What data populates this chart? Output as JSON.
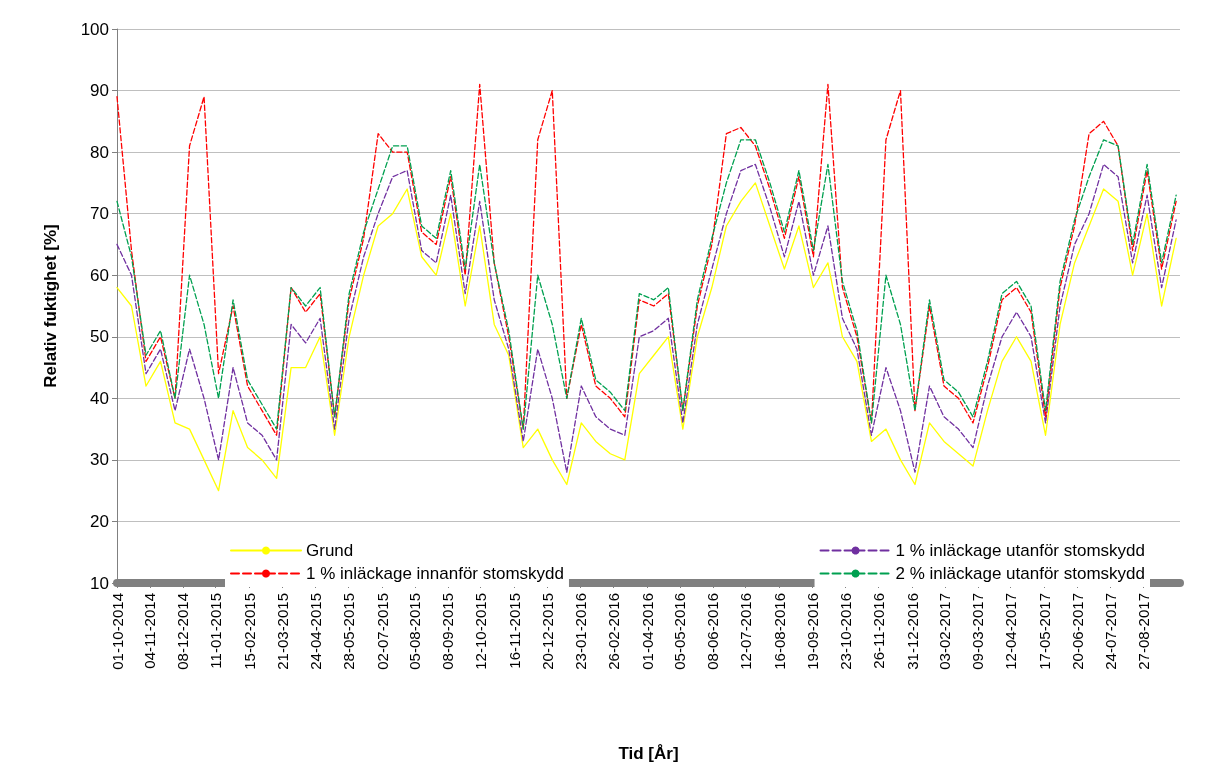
{
  "chart_data": {
    "type": "line",
    "xlabel": "Tid [År]",
    "ylabel": "Relativ fuktighet [%]",
    "x": [
      "2014-10-01",
      "2014-10-16",
      "2014-10-31",
      "2014-11-15",
      "2014-11-30",
      "2014-12-15",
      "2014-12-30",
      "2015-01-14",
      "2015-01-29",
      "2015-02-13",
      "2015-02-28",
      "2015-03-15",
      "2015-03-30",
      "2015-04-14",
      "2015-04-29",
      "2015-05-14",
      "2015-05-29",
      "2015-06-13",
      "2015-06-28",
      "2015-07-13",
      "2015-07-28",
      "2015-08-12",
      "2015-08-27",
      "2015-09-11",
      "2015-09-26",
      "2015-10-11",
      "2015-10-26",
      "2015-11-10",
      "2015-11-25",
      "2015-12-10",
      "2015-12-25",
      "2016-01-09",
      "2016-01-24",
      "2016-02-08",
      "2016-02-23",
      "2016-03-09",
      "2016-03-24",
      "2016-04-08",
      "2016-04-23",
      "2016-05-08",
      "2016-05-23",
      "2016-06-07",
      "2016-06-22",
      "2016-07-07",
      "2016-07-22",
      "2016-08-06",
      "2016-08-21",
      "2016-09-05",
      "2016-09-20",
      "2016-10-05",
      "2016-10-20",
      "2016-11-04",
      "2016-11-19",
      "2016-12-04",
      "2016-12-19",
      "2017-01-03",
      "2017-01-18",
      "2017-02-02",
      "2017-02-17",
      "2017-03-04",
      "2017-03-19",
      "2017-04-03",
      "2017-04-18",
      "2017-05-03",
      "2017-05-18",
      "2017-06-02",
      "2017-06-17",
      "2017-07-02",
      "2017-07-17",
      "2017-08-01",
      "2017-08-16",
      "2017-08-31",
      "2017-09-15",
      "2017-09-30"
    ],
    "series": [
      {
        "name": "Grund",
        "color": "#ffff00",
        "line_style": "solid",
        "values": [
          58,
          55,
          42,
          46,
          36,
          35,
          30,
          25,
          38,
          32,
          30,
          27,
          45,
          45,
          50,
          34,
          50,
          60,
          68,
          70,
          74,
          63,
          60,
          70,
          55,
          68,
          52,
          47,
          32,
          35,
          30,
          26,
          36,
          33,
          31,
          30,
          44,
          47,
          50,
          35,
          50,
          58,
          68,
          72,
          75,
          68,
          61,
          68,
          58,
          62,
          50,
          46,
          33,
          35,
          30,
          26,
          36,
          33,
          31,
          29,
          38,
          46,
          50,
          46,
          34,
          52,
          62,
          68,
          74,
          72,
          60,
          70,
          55,
          66
        ]
      },
      {
        "name": "1 % inläckage utanför stomskydd",
        "color": "#7030a0",
        "line_style": "dashed",
        "values": [
          65,
          60,
          44,
          48,
          38,
          48,
          40,
          30,
          45,
          36,
          34,
          30,
          52,
          49,
          53,
          35,
          53,
          63,
          70,
          76,
          77,
          64,
          62,
          73,
          57,
          72,
          56,
          48,
          33,
          48,
          40,
          28,
          42,
          37,
          35,
          34,
          50,
          51,
          53,
          36,
          52,
          61,
          70,
          77,
          78,
          71,
          63,
          72,
          60,
          68,
          53,
          48,
          34,
          45,
          38,
          28,
          42,
          37,
          35,
          32,
          42,
          50,
          54,
          50,
          36,
          55,
          65,
          70,
          78,
          76,
          62,
          73,
          58,
          69
        ]
      },
      {
        "name": "1 % inläckage innanför stomskydd",
        "color": "#ff0000",
        "line_style": "dashed",
        "values": [
          89,
          64,
          46,
          50,
          40,
          81,
          89,
          44,
          55,
          42,
          38,
          34,
          58,
          54,
          57,
          37,
          56,
          66,
          83,
          80,
          80,
          67,
          65,
          76,
          60,
          91,
          62,
          50,
          35,
          82,
          90,
          40,
          52,
          42,
          40,
          37,
          56,
          55,
          57,
          38,
          55,
          65,
          83,
          84,
          81,
          74,
          66,
          76,
          63,
          91,
          58,
          50,
          36,
          82,
          90,
          38,
          55,
          42,
          40,
          36,
          45,
          56,
          58,
          54,
          37,
          58,
          68,
          83,
          85,
          81,
          64,
          77,
          61,
          72
        ]
      },
      {
        "name": "2 % inläckage utanför stomskydd",
        "color": "#00a050",
        "line_style": "dashed",
        "values": [
          72,
          63,
          47,
          51,
          40,
          60,
          52,
          40,
          56,
          43,
          39,
          35,
          58,
          55,
          58,
          37,
          57,
          67,
          74,
          81,
          81,
          68,
          66,
          77,
          61,
          78,
          62,
          51,
          35,
          60,
          52,
          40,
          53,
          43,
          41,
          38,
          57,
          56,
          58,
          38,
          56,
          66,
          75,
          82,
          82,
          75,
          67,
          77,
          64,
          78,
          59,
          51,
          36,
          60,
          52,
          38,
          56,
          43,
          41,
          37,
          46,
          57,
          59,
          55,
          38,
          59,
          69,
          76,
          82,
          81,
          65,
          78,
          62,
          73
        ]
      }
    ],
    "xlim": [
      "2014-10-01",
      "2017-10-04"
    ],
    "xticks": [
      {
        "value": "2014-10-01",
        "label": "01-10-2014"
      },
      {
        "value": "2014-11-04",
        "label": "04-11-2014"
      },
      {
        "value": "2014-12-08",
        "label": "08-12-2014"
      },
      {
        "value": "2015-01-11",
        "label": "11-01-2015"
      },
      {
        "value": "2015-02-15",
        "label": "15-02-2015"
      },
      {
        "value": "2015-03-21",
        "label": "21-03-2015"
      },
      {
        "value": "2015-04-24",
        "label": "24-04-2015"
      },
      {
        "value": "2015-05-28",
        "label": "28-05-2015"
      },
      {
        "value": "2015-07-02",
        "label": "02-07-2015"
      },
      {
        "value": "2015-08-05",
        "label": "05-08-2015"
      },
      {
        "value": "2015-09-08",
        "label": "08-09-2015"
      },
      {
        "value": "2015-10-12",
        "label": "12-10-2015"
      },
      {
        "value": "2015-11-16",
        "label": "16-11-2015"
      },
      {
        "value": "2015-12-20",
        "label": "20-12-2015"
      },
      {
        "value": "2016-01-23",
        "label": "23-01-2016"
      },
      {
        "value": "2016-02-26",
        "label": "26-02-2016"
      },
      {
        "value": "2016-04-01",
        "label": "01-04-2016"
      },
      {
        "value": "2016-05-05",
        "label": "05-05-2016"
      },
      {
        "value": "2016-06-08",
        "label": "08-06-2016"
      },
      {
        "value": "2016-07-12",
        "label": "12-07-2016"
      },
      {
        "value": "2016-08-16",
        "label": "16-08-2016"
      },
      {
        "value": "2016-09-19",
        "label": "19-09-2016"
      },
      {
        "value": "2016-10-23",
        "label": "23-10-2016"
      },
      {
        "value": "2016-11-26",
        "label": "26-11-2016"
      },
      {
        "value": "2016-12-31",
        "label": "31-12-2016"
      },
      {
        "value": "2017-02-03",
        "label": "03-02-2017"
      },
      {
        "value": "2017-03-09",
        "label": "09-03-2017"
      },
      {
        "value": "2017-04-12",
        "label": "12-04-2017"
      },
      {
        "value": "2017-05-17",
        "label": "17-05-2017"
      },
      {
        "value": "2017-06-20",
        "label": "20-06-2017"
      },
      {
        "value": "2017-07-24",
        "label": "24-07-2017"
      },
      {
        "value": "2017-08-27",
        "label": "27-08-2017"
      }
    ],
    "ylim": [
      10,
      100
    ],
    "yticks": [
      10,
      20,
      30,
      40,
      50,
      60,
      70,
      80,
      90,
      100
    ],
    "grid": "y",
    "legend": "bottom",
    "marker": "none"
  }
}
